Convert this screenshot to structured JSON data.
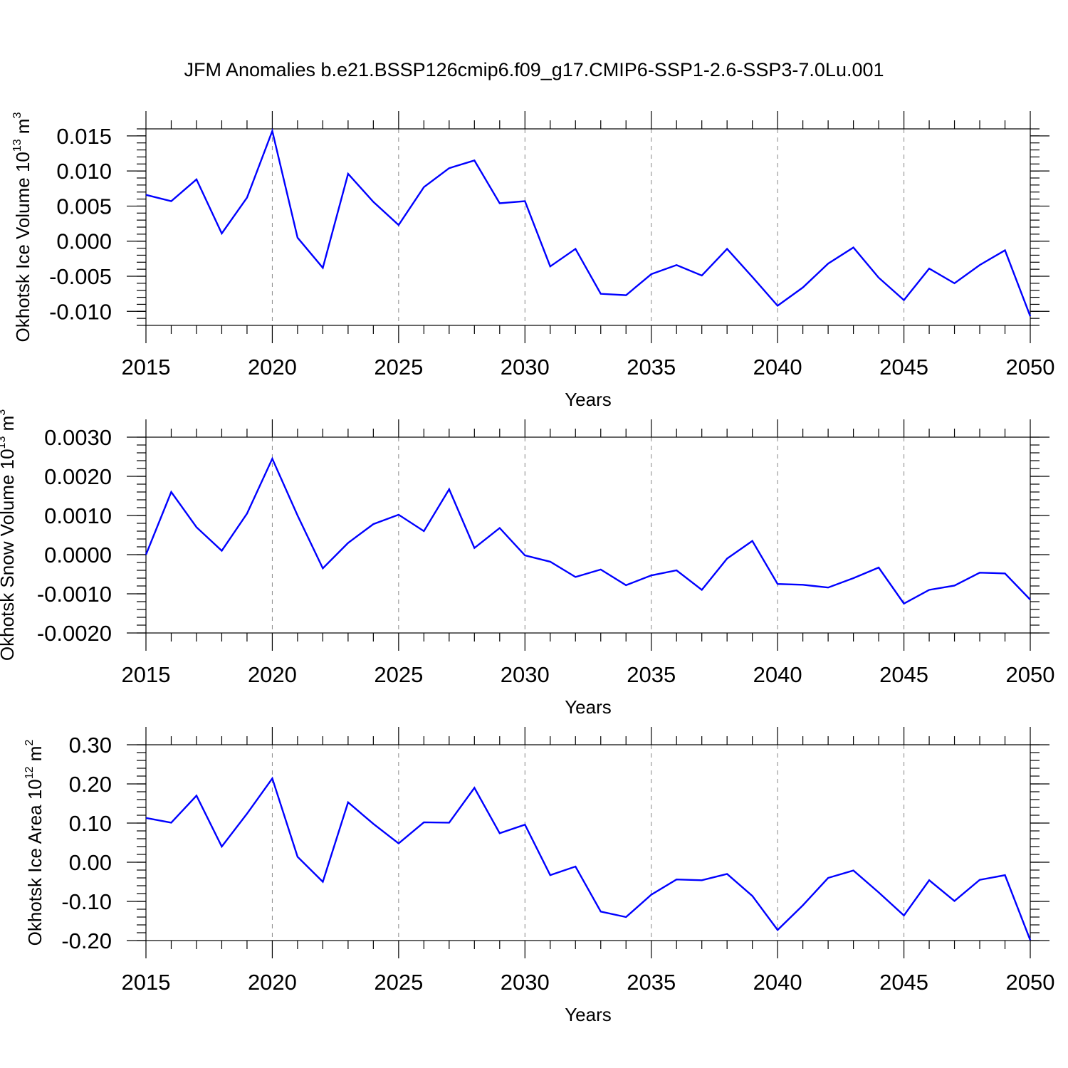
{
  "figure": {
    "title": "JFM Anomalies b.e21.BSSP126cmip6.f09_g17.CMIP6-SSP1-2.6-SSP3-7.0Lu.001",
    "line_color": "#0000ff",
    "grid_color": "#888888"
  },
  "chart_data": [
    {
      "type": "line",
      "title": "",
      "xlabel": "Years",
      "ylabel": {
        "text": "Okhotsk Ice Volume 10",
        "sup": "13",
        "unit": " m",
        "unit_sup": "3"
      },
      "xlim": [
        2015,
        2050
      ],
      "ylim": [
        -0.012,
        0.016
      ],
      "xticks": [
        2015,
        2020,
        2025,
        2030,
        2035,
        2040,
        2045,
        2050
      ],
      "xtick_labels": [
        "2015",
        "2020",
        "2025",
        "2030",
        "2035",
        "2040",
        "2045",
        "2050"
      ],
      "yticks": [
        -0.01,
        -0.005,
        0.0,
        0.005,
        0.01,
        0.015
      ],
      "ytick_labels": [
        "-0.010",
        "-0.005",
        "0.000",
        "0.005",
        "0.010",
        "0.015"
      ],
      "grid": "vertical dashed at major x ticks",
      "x": [
        2015,
        2016,
        2017,
        2018,
        2019,
        2020,
        2021,
        2022,
        2023,
        2024,
        2025,
        2026,
        2027,
        2028,
        2029,
        2030,
        2031,
        2032,
        2033,
        2034,
        2035,
        2036,
        2037,
        2038,
        2039,
        2040,
        2041,
        2042,
        2043,
        2044,
        2045,
        2046,
        2047,
        2048,
        2049,
        2050
      ],
      "series": [
        {
          "values": [
            0.0066,
            0.0057,
            0.0088,
            0.0011,
            0.0062,
            0.0157,
            0.0005,
            -0.0038,
            0.0096,
            0.0056,
            0.0023,
            0.0077,
            0.0104,
            0.0115,
            0.0054,
            0.0057,
            -0.0036,
            -0.0011,
            -0.0075,
            -0.0077,
            -0.0047,
            -0.0034,
            -0.0049,
            -0.0011,
            -0.0051,
            -0.0092,
            -0.0066,
            -0.0032,
            -0.0009,
            -0.0052,
            -0.0084,
            -0.0039,
            -0.006,
            -0.0034,
            -0.0013,
            -0.0107
          ]
        }
      ]
    },
    {
      "type": "line",
      "title": "",
      "xlabel": "Years",
      "ylabel": {
        "text": "Okhotsk Snow Volume 10",
        "sup": "13",
        "unit": " m",
        "unit_sup": "3"
      },
      "xlim": [
        2015,
        2050
      ],
      "ylim": [
        -0.002,
        0.003
      ],
      "xticks": [
        2015,
        2020,
        2025,
        2030,
        2035,
        2040,
        2045,
        2050
      ],
      "xtick_labels": [
        "2015",
        "2020",
        "2025",
        "2030",
        "2035",
        "2040",
        "2045",
        "2050"
      ],
      "yticks": [
        -0.002,
        -0.001,
        0.0,
        0.001,
        0.002,
        0.003
      ],
      "ytick_labels": [
        "-0.0020",
        "-0.0010",
        "0.0000",
        "0.0010",
        "0.0020",
        "0.0030"
      ],
      "grid": "vertical dashed at major x ticks",
      "x": [
        2015,
        2016,
        2017,
        2018,
        2019,
        2020,
        2021,
        2022,
        2023,
        2024,
        2025,
        2026,
        2027,
        2028,
        2029,
        2030,
        2031,
        2032,
        2033,
        2034,
        2035,
        2036,
        2037,
        2038,
        2039,
        2040,
        2041,
        2042,
        2043,
        2044,
        2045,
        2046,
        2047,
        2048,
        2049,
        2050
      ],
      "series": [
        {
          "values": [
            0.0,
            0.0016,
            0.0007,
            0.0001,
            0.00105,
            0.00245,
            0.001,
            -0.00035,
            0.0003,
            0.00078,
            0.00102,
            0.0006,
            0.00167,
            0.00017,
            0.00068,
            -2e-05,
            -0.00018,
            -0.00057,
            -0.00038,
            -0.00078,
            -0.00053,
            -0.0004,
            -0.0009,
            -0.0001,
            0.00035,
            -0.00075,
            -0.00077,
            -0.00084,
            -0.0006,
            -0.00033,
            -0.00125,
            -0.0009,
            -0.00079,
            -0.00046,
            -0.00048,
            -0.00115
          ]
        }
      ]
    },
    {
      "type": "line",
      "title": "",
      "xlabel": "Years",
      "ylabel": {
        "text": "Okhotsk Ice Area 10",
        "sup": "12",
        "unit": " m",
        "unit_sup": "2"
      },
      "xlim": [
        2015,
        2050
      ],
      "ylim": [
        -0.2,
        0.3
      ],
      "xticks": [
        2015,
        2020,
        2025,
        2030,
        2035,
        2040,
        2045,
        2050
      ],
      "xtick_labels": [
        "2015",
        "2020",
        "2025",
        "2030",
        "2035",
        "2040",
        "2045",
        "2050"
      ],
      "yticks": [
        -0.2,
        -0.1,
        0.0,
        0.1,
        0.2,
        0.3
      ],
      "ytick_labels": [
        "-0.20",
        "-0.10",
        "0.00",
        "0.10",
        "0.20",
        "0.30"
      ],
      "grid": "vertical dashed at major x ticks",
      "x": [
        2015,
        2016,
        2017,
        2018,
        2019,
        2020,
        2021,
        2022,
        2023,
        2024,
        2025,
        2026,
        2027,
        2028,
        2029,
        2030,
        2031,
        2032,
        2033,
        2034,
        2035,
        2036,
        2037,
        2038,
        2039,
        2040,
        2041,
        2042,
        2043,
        2044,
        2045,
        2046,
        2047,
        2048,
        2049,
        2050
      ],
      "series": [
        {
          "values": [
            0.113,
            0.101,
            0.17,
            0.04,
            0.124,
            0.214,
            0.014,
            -0.05,
            0.153,
            0.098,
            0.048,
            0.102,
            0.101,
            0.19,
            0.074,
            0.096,
            -0.033,
            -0.011,
            -0.126,
            -0.14,
            -0.083,
            -0.044,
            -0.046,
            -0.03,
            -0.086,
            -0.173,
            -0.11,
            -0.04,
            -0.021,
            -0.077,
            -0.136,
            -0.046,
            -0.099,
            -0.045,
            -0.033,
            -0.199
          ]
        }
      ]
    }
  ]
}
